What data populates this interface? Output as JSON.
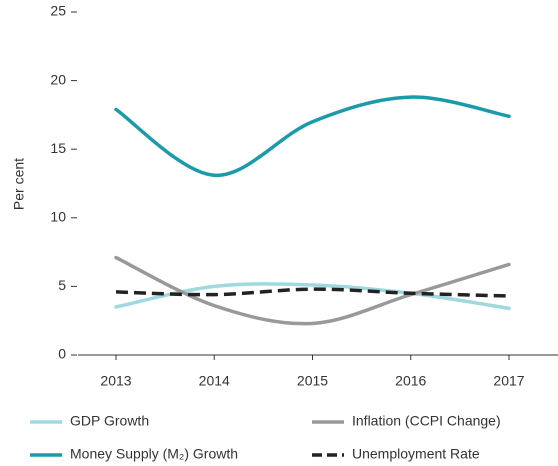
{
  "chart_data": {
    "type": "line",
    "y_label": "Per cent",
    "categories": [
      "2013",
      "2014",
      "2015",
      "2016",
      "2017"
    ],
    "ylim": [
      0,
      25
    ],
    "yticks": [
      0,
      5,
      10,
      15,
      20,
      25
    ],
    "series": [
      {
        "name": "GDP Growth",
        "color": "#9fd8df",
        "dashed": false,
        "values": [
          3.5,
          5.0,
          5.1,
          4.5,
          3.4
        ]
      },
      {
        "name": "Inflation (CCPI Change)",
        "color": "#999999",
        "dashed": false,
        "values": [
          7.1,
          3.6,
          2.3,
          4.4,
          6.6
        ]
      },
      {
        "name": "Money Supply (M₂) Growth",
        "color": "#1b9aaa",
        "dashed": false,
        "values": [
          17.9,
          13.1,
          17.0,
          18.8,
          17.4
        ]
      },
      {
        "name": "Unemployment Rate",
        "color": "#222222",
        "dashed": true,
        "values": [
          4.6,
          4.4,
          4.8,
          4.5,
          4.3
        ]
      }
    ]
  }
}
